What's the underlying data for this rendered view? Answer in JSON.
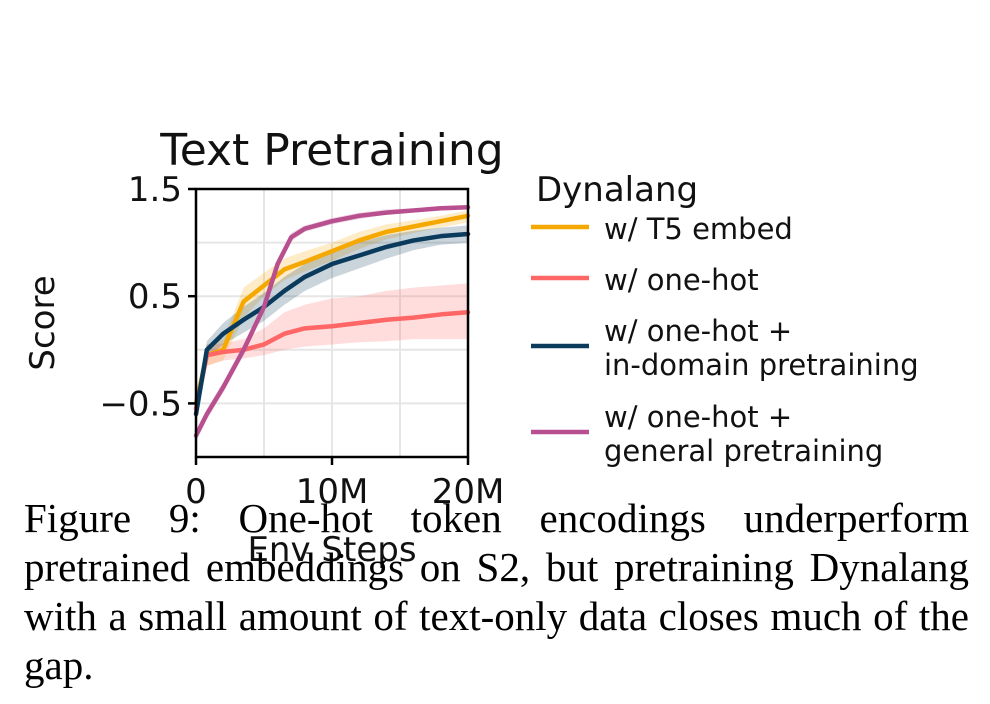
{
  "chart_data": {
    "type": "line",
    "title": "Text Pretraining",
    "xlabel": "Env Steps",
    "ylabel": "Score",
    "xlim": [
      0,
      20
    ],
    "ylim": [
      -1,
      1.5
    ],
    "x_unit": "M",
    "xticks": [
      0,
      10,
      20
    ],
    "xtick_labels": [
      "0",
      "10M",
      "20M"
    ],
    "yticks": [
      -0.5,
      0.5,
      1.5
    ],
    "ytick_labels": [
      "−0.5",
      "0.5",
      "1.5"
    ],
    "grid": true,
    "legend_title": "Dynalang",
    "legend_position": "right, outside plot",
    "series": [
      {
        "name": "w/ T5 embed",
        "name_lines": [
          "w/ T5 embed"
        ],
        "color": "#F5A800",
        "x": [
          0,
          0.8,
          2,
          3.5,
          5,
          6.5,
          8,
          10,
          12,
          14,
          16,
          18,
          20
        ],
        "y": [
          -0.5,
          -0.05,
          0.0,
          0.45,
          0.6,
          0.75,
          0.82,
          0.92,
          1.02,
          1.1,
          1.15,
          1.2,
          1.25
        ],
        "band_lo": [
          -0.6,
          -0.15,
          -0.1,
          0.3,
          0.5,
          0.65,
          0.73,
          0.83,
          0.94,
          1.03,
          1.09,
          1.14,
          1.19
        ],
        "band_hi": [
          -0.4,
          0.05,
          0.1,
          0.58,
          0.72,
          0.85,
          0.92,
          1.0,
          1.1,
          1.17,
          1.21,
          1.25,
          1.3
        ]
      },
      {
        "name": "w/ one-hot",
        "name_lines": [
          "w/ one-hot"
        ],
        "color": "#FF6666",
        "x": [
          0,
          0.8,
          2,
          3.5,
          5,
          6.5,
          8,
          10,
          12,
          14,
          16,
          18,
          20
        ],
        "y": [
          -0.55,
          -0.05,
          -0.02,
          0.0,
          0.05,
          0.15,
          0.2,
          0.22,
          0.25,
          0.28,
          0.3,
          0.33,
          0.35
        ],
        "band_lo": [
          -0.65,
          -0.15,
          -0.1,
          -0.08,
          -0.05,
          0.0,
          0.03,
          0.05,
          0.07,
          0.08,
          0.1,
          0.1,
          0.1
        ],
        "band_hi": [
          -0.45,
          0.05,
          0.06,
          0.1,
          0.2,
          0.35,
          0.42,
          0.48,
          0.5,
          0.55,
          0.58,
          0.6,
          0.62
        ]
      },
      {
        "name": "w/ one-hot + in-domain pretraining",
        "name_lines": [
          "w/ one-hot +",
          "in-domain pretraining"
        ],
        "color": "#0B3B5C",
        "x": [
          0,
          0.8,
          2,
          3.5,
          5,
          6.5,
          8,
          10,
          12,
          14,
          16,
          18,
          20
        ],
        "y": [
          -0.6,
          0.0,
          0.15,
          0.28,
          0.4,
          0.55,
          0.68,
          0.8,
          0.88,
          0.96,
          1.02,
          1.06,
          1.08
        ],
        "band_lo": [
          -0.7,
          -0.08,
          0.05,
          0.16,
          0.27,
          0.42,
          0.55,
          0.67,
          0.76,
          0.85,
          0.93,
          0.98,
          1.0
        ],
        "band_hi": [
          -0.5,
          0.08,
          0.25,
          0.4,
          0.53,
          0.68,
          0.8,
          0.92,
          1.0,
          1.07,
          1.11,
          1.14,
          1.16
        ]
      },
      {
        "name": "w/ one-hot + general pretraining",
        "name_lines": [
          "w/ one-hot +",
          "general pretraining"
        ],
        "color": "#B8508F",
        "x": [
          0,
          0.8,
          2,
          3.5,
          5,
          6,
          7,
          8,
          10,
          12,
          14,
          16,
          18,
          20
        ],
        "y": [
          -0.8,
          -0.6,
          -0.35,
          0.0,
          0.4,
          0.8,
          1.05,
          1.13,
          1.2,
          1.25,
          1.28,
          1.3,
          1.32,
          1.33
        ],
        "band_lo": [
          -0.85,
          -0.65,
          -0.4,
          -0.05,
          0.35,
          0.75,
          1.01,
          1.1,
          1.17,
          1.22,
          1.26,
          1.28,
          1.3,
          1.31
        ],
        "band_hi": [
          -0.75,
          -0.55,
          -0.3,
          0.05,
          0.45,
          0.85,
          1.09,
          1.16,
          1.23,
          1.28,
          1.31,
          1.32,
          1.34,
          1.35
        ]
      }
    ]
  },
  "caption": "Figure 9: One-hot token encodings underperform pretrained embeddings on S2, but pretraining Dynalang with a small amount of text-only data closes much of the gap."
}
